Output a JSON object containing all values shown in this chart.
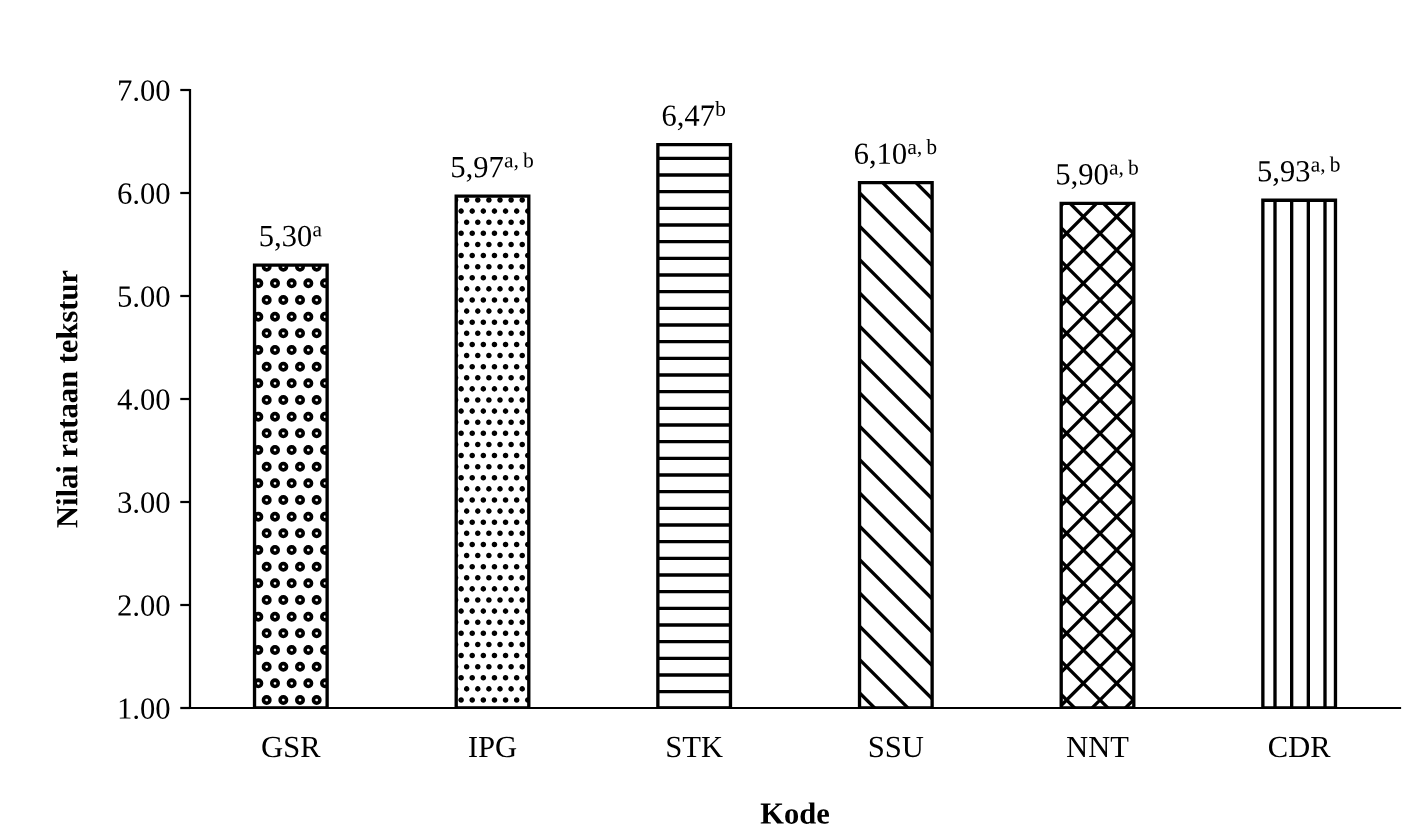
{
  "chart_data": {
    "type": "bar",
    "xlabel": "Kode",
    "ylabel": "Nilai rataan tekstur",
    "categories": [
      "GSR",
      "IPG",
      "STK",
      "SSU",
      "NNT",
      "CDR"
    ],
    "values": [
      5.3,
      5.97,
      6.47,
      6.1,
      5.9,
      5.93
    ],
    "value_labels": [
      "5,30$^{a}$",
      "5,97$^{a,b}$",
      "6,47$^{b}$",
      "6,10$^{a,b}$",
      "5,90$^{a,b}$",
      "5,93$^{a,b}$"
    ],
    "colors": [
      "#000000",
      "#000000",
      "#000000",
      "#000000",
      "#000000",
      "#000000"
    ],
    "ylim": [
      1,
      7
    ],
    "yticks": [
      {
        "value": 1,
        "label": "1.00"
      },
      {
        "value": 2,
        "label": "2.00"
      },
      {
        "value": 3,
        "label": "3.00"
      },
      {
        "value": 4,
        "label": "4.00"
      },
      {
        "value": 5,
        "label": "5.00"
      },
      {
        "value": 6,
        "label": "6.00"
      },
      {
        "value": 7,
        "label": "7.00"
      }
    ],
    "grid": false,
    "legend": false
  }
}
